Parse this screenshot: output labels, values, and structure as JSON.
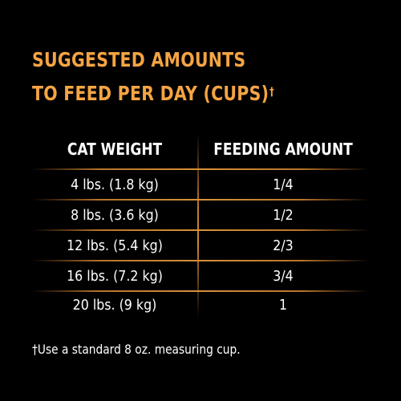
{
  "title": {
    "line1": "SUGGESTED AMOUNTS",
    "line2": "TO FEED PER DAY (CUPS)",
    "dagger": "†"
  },
  "table": {
    "headers": [
      "CAT WEIGHT",
      "FEEDING AMOUNT"
    ],
    "rows": [
      {
        "weight": "4 lbs. (1.8 kg)",
        "amount": "1/4"
      },
      {
        "weight": "8 lbs. (3.6 kg)",
        "amount": "1/2"
      },
      {
        "weight": "12 lbs. (5.4 kg)",
        "amount": "2/3"
      },
      {
        "weight": "16 lbs. (7.2 kg)",
        "amount": "3/4"
      },
      {
        "weight": "20 lbs. (9 kg)",
        "amount": "1"
      }
    ]
  },
  "footnote": "†Use a standard 8 oz. measuring cup.",
  "colors": {
    "background": "#000000",
    "title": "#f5a444",
    "text": "#ffffff",
    "rule": "#d8913a"
  }
}
